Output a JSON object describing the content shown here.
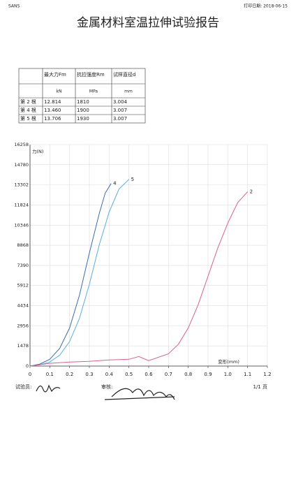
{
  "header": {
    "left": "SANS",
    "right": "打印日期: 2018-06-15",
    "title": "金属材料室温拉伸试验报告"
  },
  "table": {
    "columns": [
      "最大力Fm",
      "抗拉强度Rm",
      "试样直径d"
    ],
    "units": [
      "kN",
      "MPa",
      "mm"
    ],
    "rows": [
      [
        "第 2 根",
        "12.814",
        "1810",
        "3.004"
      ],
      [
        "第 4 根",
        "13.460",
        "1900",
        "3.007"
      ],
      [
        "第 5 根",
        "13.706",
        "1930",
        "3.007"
      ]
    ]
  },
  "chart_data": {
    "type": "line",
    "ylabel": "力(N)",
    "xlabel": "变形(mm)",
    "xlim": [
      0,
      1.2
    ],
    "ylim": [
      0,
      16258
    ],
    "xticks": [
      0,
      0.1,
      0.2,
      0.3,
      0.4,
      0.5,
      0.6,
      0.7,
      0.8,
      0.9,
      {
        "value": 1,
        "label": "1.0"
      },
      1.1,
      1.2
    ],
    "yticks": [
      0,
      1478,
      2956,
      4434,
      5912,
      7390,
      8868,
      10346,
      11824,
      13302,
      14780,
      16258
    ],
    "grid": true,
    "series": [
      {
        "name": "4",
        "color": "#3a6cb0",
        "x": [
          0,
          0.05,
          0.1,
          0.15,
          0.2,
          0.25,
          0.3,
          0.35,
          0.38,
          0.41
        ],
        "values": [
          0,
          150,
          500,
          1300,
          2800,
          5200,
          8300,
          11200,
          12700,
          13400
        ]
      },
      {
        "name": "5",
        "color": "#58aee0",
        "x": [
          0,
          0.05,
          0.1,
          0.15,
          0.2,
          0.25,
          0.3,
          0.35,
          0.4,
          0.45,
          0.5
        ],
        "values": [
          0,
          100,
          300,
          800,
          1800,
          3500,
          6000,
          8900,
          11300,
          13000,
          13700
        ]
      },
      {
        "name": "2",
        "color": "#d8628c",
        "x": [
          0,
          0.1,
          0.2,
          0.3,
          0.4,
          0.5,
          0.55,
          0.6,
          0.7,
          0.75,
          0.8,
          0.85,
          0.9,
          0.95,
          1.0,
          1.05,
          1.1
        ],
        "values": [
          0,
          200,
          300,
          350,
          450,
          500,
          700,
          400,
          900,
          1600,
          2800,
          4500,
          6600,
          8700,
          10500,
          12000,
          12800
        ]
      }
    ]
  },
  "footer": {
    "tester": "试验员:",
    "reviewer": "审核:",
    "page": "1/1 页"
  }
}
